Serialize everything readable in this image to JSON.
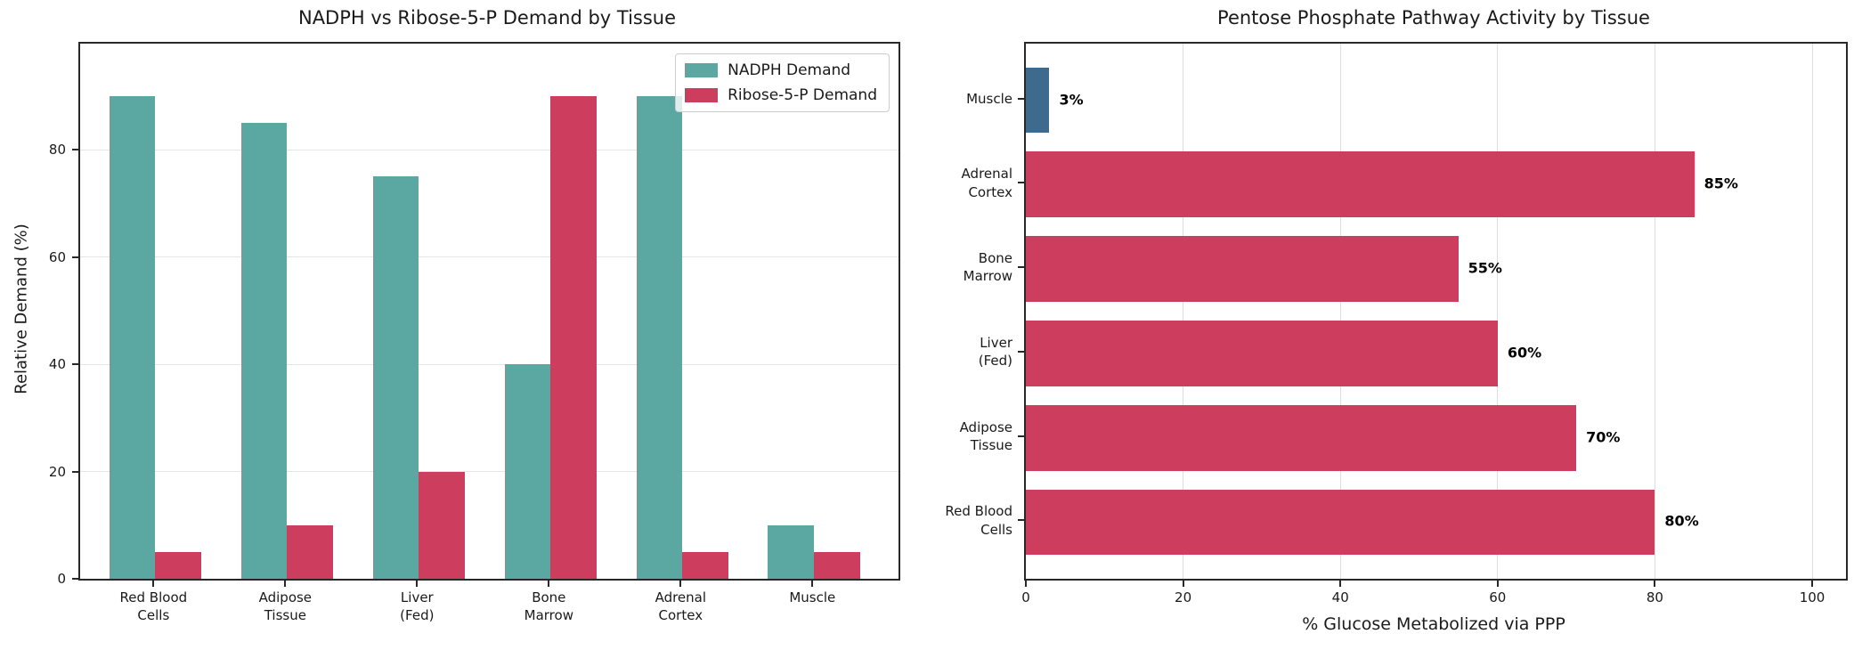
{
  "figure": {
    "background": "#ffffff",
    "text_color": "#1a1a1a",
    "spine_color": "#282828",
    "grid_color": "#e6e6e6",
    "legend_border_color": "#cccccc",
    "legend_background": "rgba(255,255,255,0.8)"
  },
  "chart_data": [
    {
      "type": "bar",
      "title": "NADPH vs Ribose-5-P Demand by Tissue",
      "xlabel": "",
      "ylabel": "Relative Demand (%)",
      "categories": [
        "Red Blood\nCells",
        "Adipose\nTissue",
        "Liver\n(Fed)",
        "Bone\nMarrow",
        "Adrenal\nCortex",
        "Muscle"
      ],
      "series": [
        {
          "name": "NADPH Demand",
          "color": "#5BA8A3",
          "values": [
            90,
            85,
            75,
            40,
            90,
            10
          ]
        },
        {
          "name": "Ribose-5-P Demand",
          "color": "#CC3D5E",
          "values": [
            5,
            10,
            20,
            90,
            5,
            5
          ]
        }
      ],
      "ylim": [
        0,
        99.8
      ],
      "yticks": [
        0,
        20,
        40,
        60,
        80
      ],
      "grid": "horizontal",
      "legend_position": "upper right"
    },
    {
      "type": "bar",
      "orientation": "horizontal",
      "title": "Pentose Phosphate Pathway Activity by Tissue",
      "xlabel": "% Glucose Metabolized via PPP",
      "ylabel": "",
      "categories": [
        "Muscle",
        "Adrenal\nCortex",
        "Bone\nMarrow",
        "Liver\n(Fed)",
        "Adipose\nTissue",
        "Red Blood\nCells"
      ],
      "values": [
        3,
        85,
        55,
        60,
        70,
        80
      ],
      "value_labels": [
        "3%",
        "85%",
        "55%",
        "60%",
        "70%",
        "80%"
      ],
      "bar_colors": [
        "#3E6B8D",
        "#CC3D5E",
        "#CC3D5E",
        "#CC3D5E",
        "#CC3D5E",
        "#CC3D5E"
      ],
      "xlim": [
        0,
        104.3
      ],
      "xticks": [
        0,
        20,
        40,
        60,
        80,
        100
      ],
      "grid": "vertical",
      "legend_position": "none"
    }
  ]
}
